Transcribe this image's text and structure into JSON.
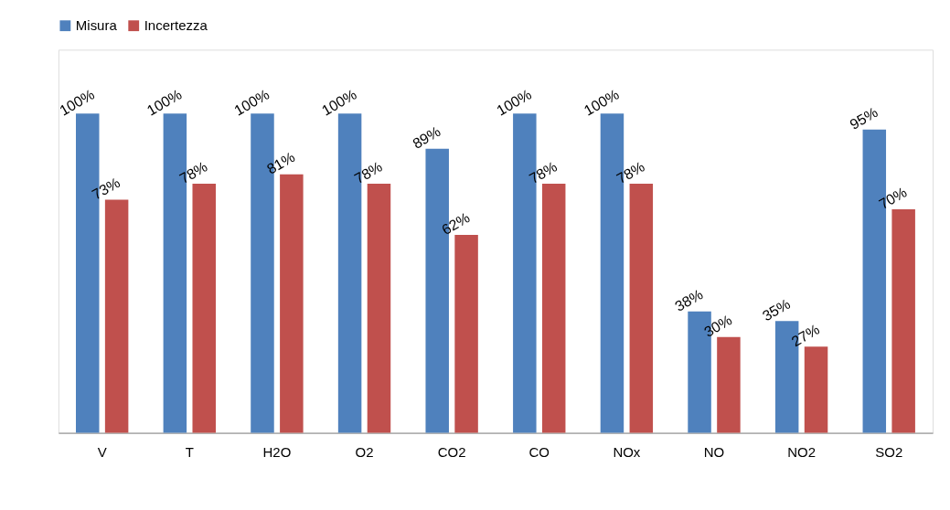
{
  "chart_data": {
    "type": "bar",
    "categories": [
      "V",
      "T",
      "H2O",
      "O2",
      "CO2",
      "CO",
      "NOx",
      "NO",
      "NO2",
      "SO2"
    ],
    "series": [
      {
        "name": "Misura",
        "color": "#4f81bd",
        "values": [
          100,
          100,
          100,
          100,
          89,
          100,
          100,
          38,
          35,
          95
        ],
        "value_labels": [
          "100%",
          "100%",
          "100%",
          "100%",
          "89%",
          "100%",
          "100%",
          "38%",
          "35%",
          "95%"
        ]
      },
      {
        "name": "Incertezza",
        "color": "#c0504d",
        "values": [
          73,
          78,
          81,
          78,
          62,
          78,
          78,
          30,
          27,
          70
        ],
        "value_labels": [
          "73%",
          "78%",
          "81%",
          "78%",
          "62%",
          "78%",
          "78%",
          "30%",
          "27%",
          "70%"
        ]
      }
    ],
    "legend": "top",
    "grid": false
  }
}
